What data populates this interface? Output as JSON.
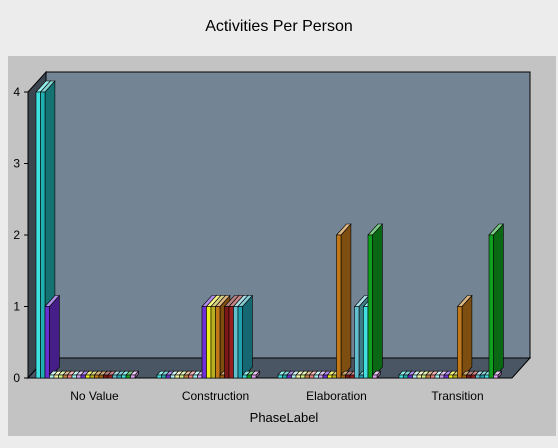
{
  "chart_data": {
    "type": "bar",
    "title": "Activities Per Person",
    "xlabel": "PhaseLabel",
    "ylabel": "",
    "ylim": [
      0,
      4
    ],
    "yticks": [
      0,
      1,
      2,
      3,
      4
    ],
    "categories": [
      "No Value",
      "Construction",
      "Elaboration",
      "Transition"
    ],
    "grid": false,
    "legend": "none",
    "plot_background": "#738494",
    "series": [
      {
        "color": "#40e0e0",
        "values": [
          4,
          0,
          0,
          0
        ]
      },
      {
        "color": "#20b0b0",
        "values": [
          4,
          0,
          0,
          0
        ]
      },
      {
        "color": "#6a2fd0",
        "values": [
          1,
          0,
          0,
          0
        ]
      },
      {
        "color": "#b0f0f0",
        "values": [
          0,
          0,
          0,
          0
        ]
      },
      {
        "color": "#f0f0a0",
        "values": [
          0,
          0,
          0,
          0
        ]
      },
      {
        "color": "#d0f080",
        "values": [
          0,
          0,
          0,
          0
        ]
      },
      {
        "color": "#c08040",
        "values": [
          0,
          0,
          0,
          0
        ]
      },
      {
        "color": "#f08080",
        "values": [
          0,
          0,
          0,
          0
        ]
      },
      {
        "color": "#a0f0f0",
        "values": [
          0,
          0,
          0,
          0
        ]
      },
      {
        "color": "#d0a0f0",
        "values": [
          0,
          0,
          0,
          0
        ]
      },
      {
        "color": "#6f30d8",
        "values": [
          0,
          1,
          0,
          0
        ]
      },
      {
        "color": "#f0f020",
        "values": [
          0,
          1,
          0,
          0
        ]
      },
      {
        "color": "#b8b020",
        "values": [
          0,
          1,
          0,
          0
        ]
      },
      {
        "color": "#c07818",
        "values": [
          0,
          1,
          2,
          1
        ]
      },
      {
        "color": "#a06008",
        "values": [
          0,
          0,
          0,
          0
        ]
      },
      {
        "color": "#7a1818",
        "values": [
          0,
          1,
          0,
          0
        ]
      },
      {
        "color": "#9a2020",
        "values": [
          0,
          1,
          0,
          0
        ]
      },
      {
        "color": "#60c0d0",
        "values": [
          0,
          1,
          1,
          0
        ]
      },
      {
        "color": "#20a0b0",
        "values": [
          0,
          1,
          0,
          0
        ]
      },
      {
        "color": "#40e0e0",
        "values": [
          0,
          0,
          1,
          0
        ]
      },
      {
        "color": "#10a020",
        "values": [
          0,
          0,
          2,
          2
        ]
      },
      {
        "color": "#e0a0f0",
        "values": [
          0,
          0,
          0,
          0
        ]
      }
    ]
  }
}
